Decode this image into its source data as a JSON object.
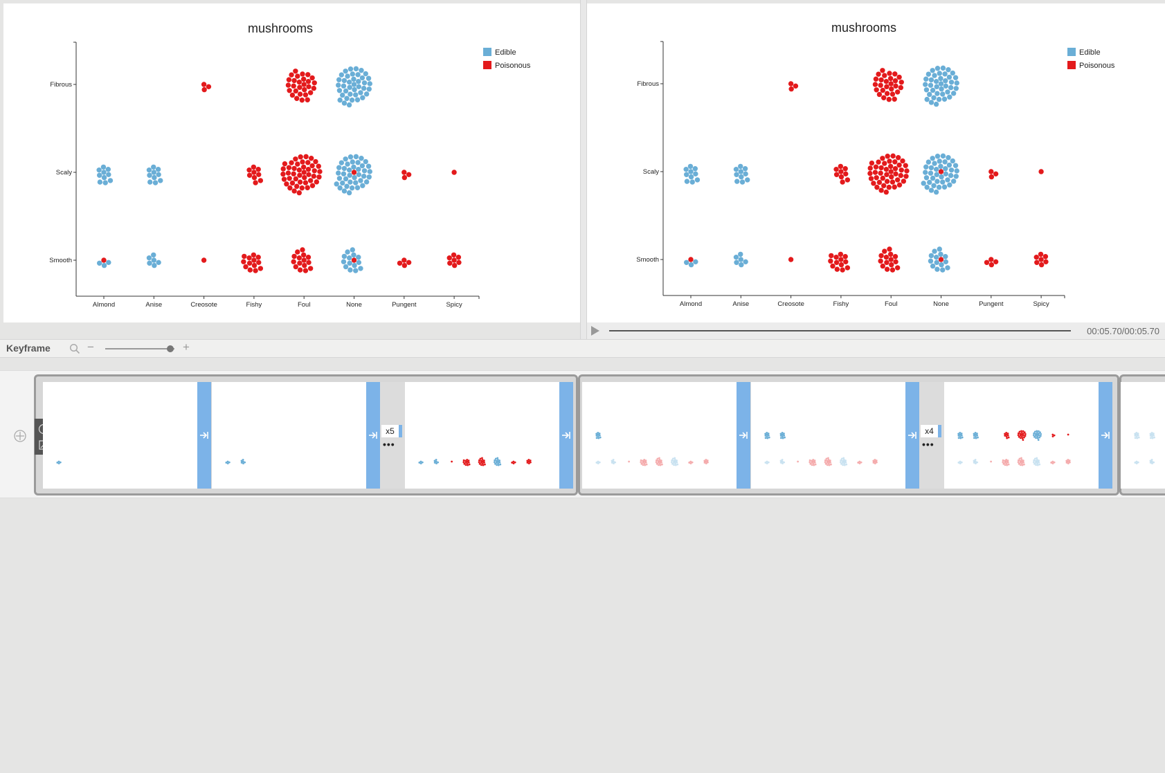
{
  "chart_data": [
    {
      "type": "scatter",
      "title": "mushrooms",
      "x_categories": [
        "Almond",
        "Anise",
        "Creosote",
        "Fishy",
        "Foul",
        "None",
        "Pungent",
        "Spicy"
      ],
      "y_categories": [
        "Smooth",
        "Scaly",
        "Fibrous"
      ],
      "legend": {
        "position": "top-right",
        "entries": [
          {
            "name": "Edible",
            "color": "#6aaed6"
          },
          {
            "name": "Poisonous",
            "color": "#e31a1c"
          }
        ]
      },
      "clusters": [
        {
          "x": "Creosote",
          "y": "Fibrous",
          "edible": 0,
          "poisonous": 3
        },
        {
          "x": "Foul",
          "y": "Fibrous",
          "edible": 0,
          "poisonous": 28
        },
        {
          "x": "None",
          "y": "Fibrous",
          "edible": 40,
          "poisonous": 0
        },
        {
          "x": "Almond",
          "y": "Scaly",
          "edible": 10,
          "poisonous": 0
        },
        {
          "x": "Anise",
          "y": "Scaly",
          "edible": 10,
          "poisonous": 0
        },
        {
          "x": "Fishy",
          "y": "Scaly",
          "edible": 0,
          "poisonous": 9
        },
        {
          "x": "Foul",
          "y": "Scaly",
          "edible": 0,
          "poisonous": 45
        },
        {
          "x": "None",
          "y": "Scaly",
          "edible": 40,
          "poisonous": 1
        },
        {
          "x": "Pungent",
          "y": "Scaly",
          "edible": 0,
          "poisonous": 3
        },
        {
          "x": "Spicy",
          "y": "Scaly",
          "edible": 0,
          "poisonous": 1
        },
        {
          "x": "Almond",
          "y": "Smooth",
          "edible": 3,
          "poisonous": 1
        },
        {
          "x": "Anise",
          "y": "Smooth",
          "edible": 6,
          "poisonous": 0
        },
        {
          "x": "Creosote",
          "y": "Smooth",
          "edible": 0,
          "poisonous": 1
        },
        {
          "x": "Fishy",
          "y": "Smooth",
          "edible": 0,
          "poisonous": 13
        },
        {
          "x": "Foul",
          "y": "Smooth",
          "edible": 0,
          "poisonous": 15
        },
        {
          "x": "None",
          "y": "Smooth",
          "edible": 14,
          "poisonous": 1
        },
        {
          "x": "Pungent",
          "y": "Smooth",
          "edible": 0,
          "poisonous": 4
        },
        {
          "x": "Spicy",
          "y": "Smooth",
          "edible": 0,
          "poisonous": 7
        }
      ]
    },
    {
      "type": "scatter",
      "title": "mushrooms",
      "x_categories": [
        "Almond",
        "Anise",
        "Creosote",
        "Fishy",
        "Foul",
        "None",
        "Pungent",
        "Spicy"
      ],
      "y_categories": [
        "Smooth",
        "Scaly",
        "Fibrous"
      ],
      "legend": {
        "position": "top-right",
        "entries": [
          {
            "name": "Edible",
            "color": "#6aaed6"
          },
          {
            "name": "Poisonous",
            "color": "#e31a1c"
          }
        ]
      },
      "clusters": [
        {
          "x": "Creosote",
          "y": "Fibrous",
          "edible": 0,
          "poisonous": 3
        },
        {
          "x": "Foul",
          "y": "Fibrous",
          "edible": 0,
          "poisonous": 28
        },
        {
          "x": "None",
          "y": "Fibrous",
          "edible": 40,
          "poisonous": 0
        },
        {
          "x": "Almond",
          "y": "Scaly",
          "edible": 10,
          "poisonous": 0
        },
        {
          "x": "Anise",
          "y": "Scaly",
          "edible": 10,
          "poisonous": 0
        },
        {
          "x": "Fishy",
          "y": "Scaly",
          "edible": 0,
          "poisonous": 9
        },
        {
          "x": "Foul",
          "y": "Scaly",
          "edible": 0,
          "poisonous": 45
        },
        {
          "x": "None",
          "y": "Scaly",
          "edible": 40,
          "poisonous": 1
        },
        {
          "x": "Pungent",
          "y": "Scaly",
          "edible": 0,
          "poisonous": 3
        },
        {
          "x": "Spicy",
          "y": "Scaly",
          "edible": 0,
          "poisonous": 1
        },
        {
          "x": "Almond",
          "y": "Smooth",
          "edible": 3,
          "poisonous": 1
        },
        {
          "x": "Anise",
          "y": "Smooth",
          "edible": 6,
          "poisonous": 0
        },
        {
          "x": "Creosote",
          "y": "Smooth",
          "edible": 0,
          "poisonous": 1
        },
        {
          "x": "Fishy",
          "y": "Smooth",
          "edible": 0,
          "poisonous": 13
        },
        {
          "x": "Foul",
          "y": "Smooth",
          "edible": 0,
          "poisonous": 15
        },
        {
          "x": "None",
          "y": "Smooth",
          "edible": 14,
          "poisonous": 1
        },
        {
          "x": "Pungent",
          "y": "Smooth",
          "edible": 0,
          "poisonous": 4
        },
        {
          "x": "Spicy",
          "y": "Smooth",
          "edible": 0,
          "poisonous": 7
        }
      ]
    }
  ],
  "player": {
    "time": "00:05.70/00:05.70",
    "progress": 1.0
  },
  "keyframe_panel": {
    "title": "Keyframe",
    "zoom_level": 0.94,
    "groups": [
      {
        "repeat_label": "x5"
      },
      {
        "repeat_label": "x4"
      }
    ]
  },
  "colors": {
    "edible": "#6aaed6",
    "poisonous": "#e31a1c",
    "transition": "#7cb3e8"
  },
  "icons": [
    "search-icon",
    "zoom-minus-icon",
    "zoom-plus-icon",
    "play-icon",
    "add-track-icon",
    "transition-arrow-icon",
    "more-dots-icon"
  ]
}
